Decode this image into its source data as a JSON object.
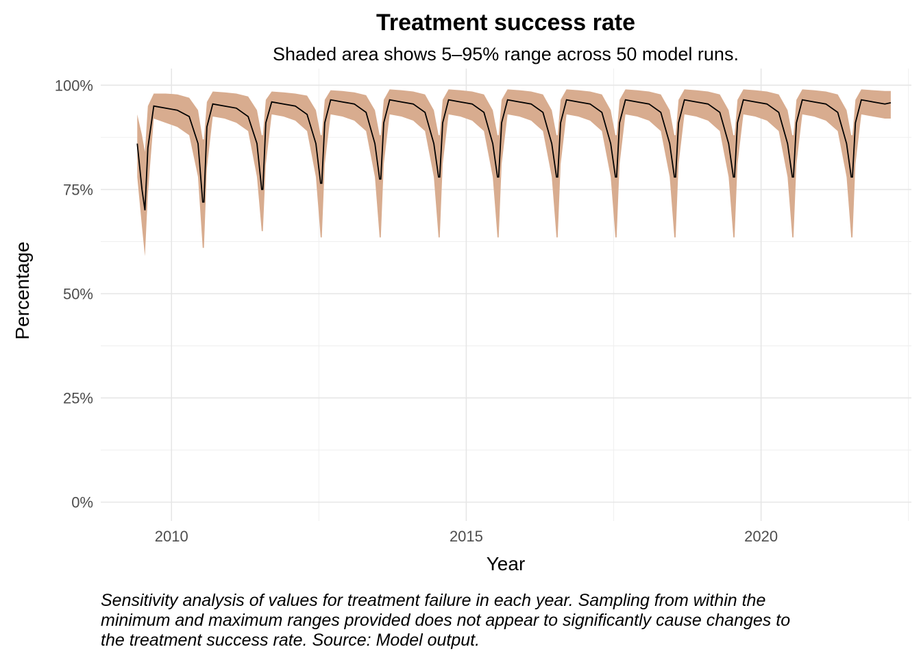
{
  "chart_data": {
    "type": "area",
    "title": "Treatment success rate",
    "subtitle": "Shaded area shows 5–95% range across 50 model runs.",
    "xlabel": "Year",
    "ylabel": "Percentage",
    "caption": "Sensitivity analysis of values for treatment failure in each year. Sampling from within the minimum and maximum ranges provided does not appear to significantly cause changes to the treatment success rate. Source: Model output.",
    "xlim": [
      2008.8,
      2022.55
    ],
    "ylim": [
      -4.5,
      104
    ],
    "x_ticks": [
      {
        "value": 2010,
        "label": "2010"
      },
      {
        "value": 2015,
        "label": "2015"
      },
      {
        "value": 2020,
        "label": "2020"
      }
    ],
    "y_ticks": [
      {
        "value": 0,
        "label": "0%"
      },
      {
        "value": 25,
        "label": "25%"
      },
      {
        "value": 50,
        "label": "50%"
      },
      {
        "value": 75,
        "label": "75%"
      },
      {
        "value": 100,
        "label": "100%"
      }
    ],
    "grid": true,
    "series": [
      {
        "role": "median",
        "color": "#000000",
        "x": [
          2009.42,
          2009.5,
          2009.55,
          2009.6,
          2009.7,
          2009.9,
          2010.1,
          2010.3,
          2010.45,
          2010.53,
          2010.55,
          2010.6,
          2010.7,
          2010.9,
          2011.1,
          2011.3,
          2011.45,
          2011.53,
          2011.55,
          2011.6,
          2011.7,
          2011.9,
          2012.1,
          2012.3,
          2012.45,
          2012.53,
          2012.55,
          2012.6,
          2012.7,
          2012.9,
          2013.1,
          2013.3,
          2013.45,
          2013.53,
          2013.55,
          2013.6,
          2013.7,
          2013.9,
          2014.1,
          2014.3,
          2014.45,
          2014.53,
          2014.55,
          2014.6,
          2014.7,
          2014.9,
          2015.1,
          2015.3,
          2015.45,
          2015.53,
          2015.55,
          2015.6,
          2015.7,
          2015.9,
          2016.1,
          2016.3,
          2016.45,
          2016.53,
          2016.55,
          2016.6,
          2016.7,
          2016.9,
          2017.1,
          2017.3,
          2017.45,
          2017.53,
          2017.55,
          2017.6,
          2017.7,
          2017.9,
          2018.1,
          2018.3,
          2018.45,
          2018.53,
          2018.55,
          2018.6,
          2018.7,
          2018.9,
          2019.1,
          2019.3,
          2019.45,
          2019.53,
          2019.55,
          2019.6,
          2019.7,
          2019.9,
          2020.1,
          2020.3,
          2020.45,
          2020.53,
          2020.55,
          2020.6,
          2020.7,
          2020.9,
          2021.1,
          2021.3,
          2021.45,
          2021.53,
          2021.55,
          2021.6,
          2021.7,
          2021.9,
          2022.1,
          2022.2
        ],
        "values": [
          86,
          75,
          70,
          85,
          95,
          94.5,
          94,
          92.5,
          86,
          72,
          72,
          90,
          95.5,
          95,
          94.5,
          92.5,
          86,
          75,
          75,
          91,
          96,
          95.5,
          95,
          93,
          86,
          76.5,
          76.5,
          91,
          96.5,
          96,
          95.5,
          93.5,
          86,
          77.5,
          77.5,
          91,
          96.5,
          96,
          95.5,
          93.5,
          86,
          78,
          78,
          91,
          96.5,
          96,
          95.5,
          93.5,
          86,
          78,
          78,
          91,
          96.5,
          96,
          95.5,
          93.5,
          86,
          78,
          78,
          91,
          96.5,
          96,
          95.5,
          93.5,
          86,
          78,
          78,
          91,
          96.5,
          96,
          95.5,
          93.5,
          86,
          78,
          78,
          91,
          96.5,
          96,
          95.5,
          93.5,
          86,
          78,
          78,
          91,
          96.5,
          96,
          95.5,
          93.5,
          86,
          78,
          78,
          91,
          96.5,
          96,
          95.5,
          93.5,
          86,
          78,
          78,
          91,
          96.5,
          96,
          95.5,
          95.8
        ]
      },
      {
        "role": "lower",
        "color": "#d8ac8f",
        "x": [
          2009.42,
          2009.5,
          2009.55,
          2009.6,
          2009.7,
          2009.9,
          2010.1,
          2010.3,
          2010.45,
          2010.53,
          2010.55,
          2010.6,
          2010.7,
          2010.9,
          2011.1,
          2011.3,
          2011.45,
          2011.53,
          2011.55,
          2011.6,
          2011.7,
          2011.9,
          2012.1,
          2012.3,
          2012.45,
          2012.53,
          2012.55,
          2012.6,
          2012.7,
          2012.9,
          2013.1,
          2013.3,
          2013.45,
          2013.53,
          2013.55,
          2013.6,
          2013.7,
          2013.9,
          2014.1,
          2014.3,
          2014.45,
          2014.53,
          2014.55,
          2014.6,
          2014.7,
          2014.9,
          2015.1,
          2015.3,
          2015.45,
          2015.53,
          2015.55,
          2015.6,
          2015.7,
          2015.9,
          2016.1,
          2016.3,
          2016.45,
          2016.53,
          2016.55,
          2016.6,
          2016.7,
          2016.9,
          2017.1,
          2017.3,
          2017.45,
          2017.53,
          2017.55,
          2017.6,
          2017.7,
          2017.9,
          2018.1,
          2018.3,
          2018.45,
          2018.53,
          2018.55,
          2018.6,
          2018.7,
          2018.9,
          2019.1,
          2019.3,
          2019.45,
          2019.53,
          2019.55,
          2019.6,
          2019.7,
          2019.9,
          2020.1,
          2020.3,
          2020.45,
          2020.53,
          2020.55,
          2020.6,
          2020.7,
          2020.9,
          2021.1,
          2021.3,
          2021.45,
          2021.53,
          2021.55,
          2021.6,
          2021.7,
          2021.9,
          2022.1,
          2022.2
        ],
        "values": [
          78,
          66,
          59,
          74,
          92,
          91,
          90,
          88,
          78,
          61,
          61,
          80,
          92.5,
          92,
          91,
          89,
          78,
          65,
          65,
          81,
          93,
          92.5,
          91.5,
          89,
          78,
          63.5,
          63.5,
          81,
          93,
          92.5,
          91.5,
          89,
          78,
          63.5,
          63.5,
          81,
          93,
          92.5,
          91.5,
          89,
          78,
          63.5,
          63.5,
          81,
          93,
          92.5,
          91.5,
          89,
          78,
          63.5,
          63.5,
          81,
          93,
          92.5,
          91.5,
          89,
          78,
          63.5,
          63.5,
          81,
          93,
          92.5,
          91.5,
          89,
          78,
          63.5,
          63.5,
          81,
          93,
          92.5,
          91.5,
          89,
          78,
          63.5,
          63.5,
          81,
          93,
          92.5,
          91.5,
          89,
          78,
          63.5,
          63.5,
          81,
          93,
          92.5,
          91.5,
          89,
          78,
          63.5,
          63.5,
          81,
          93,
          92.5,
          91.5,
          89,
          78,
          63.5,
          63.5,
          81,
          93,
          92.5,
          92,
          92
        ]
      },
      {
        "role": "upper",
        "color": "#d8ac8f",
        "x": [
          2009.42,
          2009.5,
          2009.55,
          2009.6,
          2009.7,
          2009.9,
          2010.1,
          2010.3,
          2010.45,
          2010.53,
          2010.55,
          2010.6,
          2010.7,
          2010.9,
          2011.1,
          2011.3,
          2011.45,
          2011.53,
          2011.55,
          2011.6,
          2011.7,
          2011.9,
          2012.1,
          2012.3,
          2012.45,
          2012.53,
          2012.55,
          2012.6,
          2012.7,
          2012.9,
          2013.1,
          2013.3,
          2013.45,
          2013.53,
          2013.55,
          2013.6,
          2013.7,
          2013.9,
          2014.1,
          2014.3,
          2014.45,
          2014.53,
          2014.55,
          2014.6,
          2014.7,
          2014.9,
          2015.1,
          2015.3,
          2015.45,
          2015.53,
          2015.55,
          2015.6,
          2015.7,
          2015.9,
          2016.1,
          2016.3,
          2016.45,
          2016.53,
          2016.55,
          2016.6,
          2016.7,
          2016.9,
          2017.1,
          2017.3,
          2017.45,
          2017.53,
          2017.55,
          2017.6,
          2017.7,
          2017.9,
          2018.1,
          2018.3,
          2018.45,
          2018.53,
          2018.55,
          2018.6,
          2018.7,
          2018.9,
          2019.1,
          2019.3,
          2019.45,
          2019.53,
          2019.55,
          2019.6,
          2019.7,
          2019.9,
          2020.1,
          2020.3,
          2020.45,
          2020.53,
          2020.55,
          2020.6,
          2020.7,
          2020.9,
          2021.1,
          2021.3,
          2021.45,
          2021.53,
          2021.55,
          2021.6,
          2021.7,
          2021.9,
          2022.1,
          2022.2
        ],
        "values": [
          93,
          88,
          84,
          95,
          98,
          98,
          97.8,
          97,
          94,
          87,
          87,
          96,
          98.5,
          98.3,
          98,
          97.3,
          94,
          88,
          88,
          96.5,
          98.5,
          98.3,
          98,
          97.5,
          94,
          88,
          88,
          96.5,
          98.8,
          98.6,
          98.3,
          97.6,
          94,
          88,
          88,
          96.5,
          99,
          98.8,
          98.5,
          97.8,
          94,
          88,
          88,
          96.5,
          99,
          98.8,
          98.5,
          97.8,
          94,
          88,
          88,
          96.5,
          99,
          98.8,
          98.5,
          97.8,
          94,
          88,
          88,
          96.5,
          99,
          98.8,
          98.5,
          97.8,
          94,
          88,
          88,
          96.5,
          99,
          98.8,
          98.5,
          97.8,
          94,
          88,
          88,
          96.5,
          99,
          98.8,
          98.5,
          97.8,
          94,
          88,
          88,
          96.5,
          99,
          98.8,
          98.5,
          97.8,
          94,
          88,
          88,
          96.5,
          99,
          98.8,
          98.5,
          97.8,
          94,
          88,
          88,
          96.5,
          99,
          98.8,
          98.6,
          98.6
        ]
      }
    ]
  }
}
